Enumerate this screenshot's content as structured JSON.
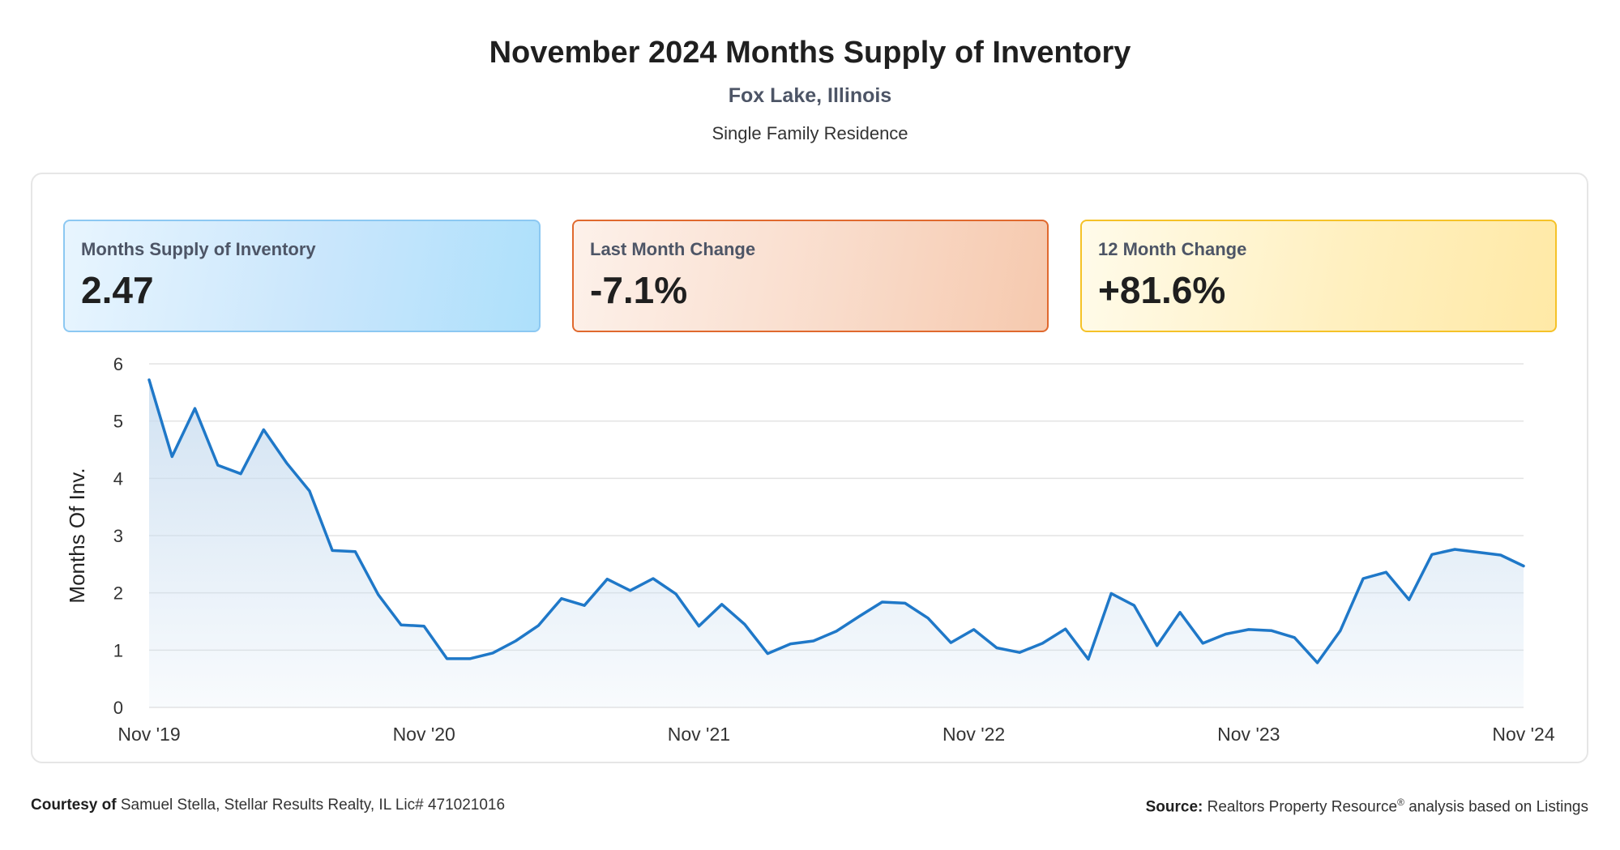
{
  "header": {
    "title": "November 2024 Months Supply of Inventory",
    "subtitle": "Fox Lake, Illinois",
    "subsubtitle": "Single Family Residence"
  },
  "cards": [
    {
      "label": "Months Supply of Inventory",
      "value": "2.47",
      "color": "#2f9ee8"
    },
    {
      "label": "Last Month Change",
      "value": "-7.1%",
      "color": "#e0692e"
    },
    {
      "label": "12 Month Change",
      "value": "+81.6%",
      "color": "#f5c228"
    }
  ],
  "footer": {
    "courtesy_label": "Courtesy of",
    "courtesy_text": "Samuel Stella, Stellar Results Realty, IL Lic# 471021016",
    "source_label": "Source:",
    "source_text_1": "Realtors Property Resource",
    "source_reg": "®",
    "source_text_2": "analysis based on Listings"
  },
  "chart_data": {
    "type": "area",
    "ylabel": "Months Of Inv.",
    "xlabel": "",
    "ylim": [
      0,
      6
    ],
    "yticks": [
      0,
      1,
      2,
      3,
      4,
      5,
      6
    ],
    "xtick_labels": [
      "Nov '19",
      "Nov '20",
      "Nov '21",
      "Nov '22",
      "Nov '23",
      "Nov '24"
    ],
    "grid": true,
    "line_color": "#1f78c8",
    "fill_color": "#c9ddf0",
    "series": [
      {
        "values": [
          5.72,
          4.38,
          5.22,
          4.23,
          4.08,
          4.85,
          4.27,
          3.78,
          2.74,
          2.72,
          1.97,
          1.44,
          1.42,
          0.85,
          0.85,
          0.95,
          1.16,
          1.43,
          1.9,
          1.78,
          2.24,
          2.04,
          2.25,
          1.98,
          1.42,
          1.8,
          1.45,
          0.94,
          1.11,
          1.16,
          1.33,
          1.59,
          1.84,
          1.82,
          1.56,
          1.13,
          1.36,
          1.04,
          0.96,
          1.12,
          1.37,
          0.84,
          1.99,
          1.78,
          1.08,
          1.66,
          1.12,
          1.28,
          1.36,
          1.34,
          1.22,
          0.78,
          1.34,
          2.25,
          2.36,
          1.88,
          2.67,
          2.76,
          2.71,
          2.66,
          2.47
        ]
      }
    ]
  }
}
